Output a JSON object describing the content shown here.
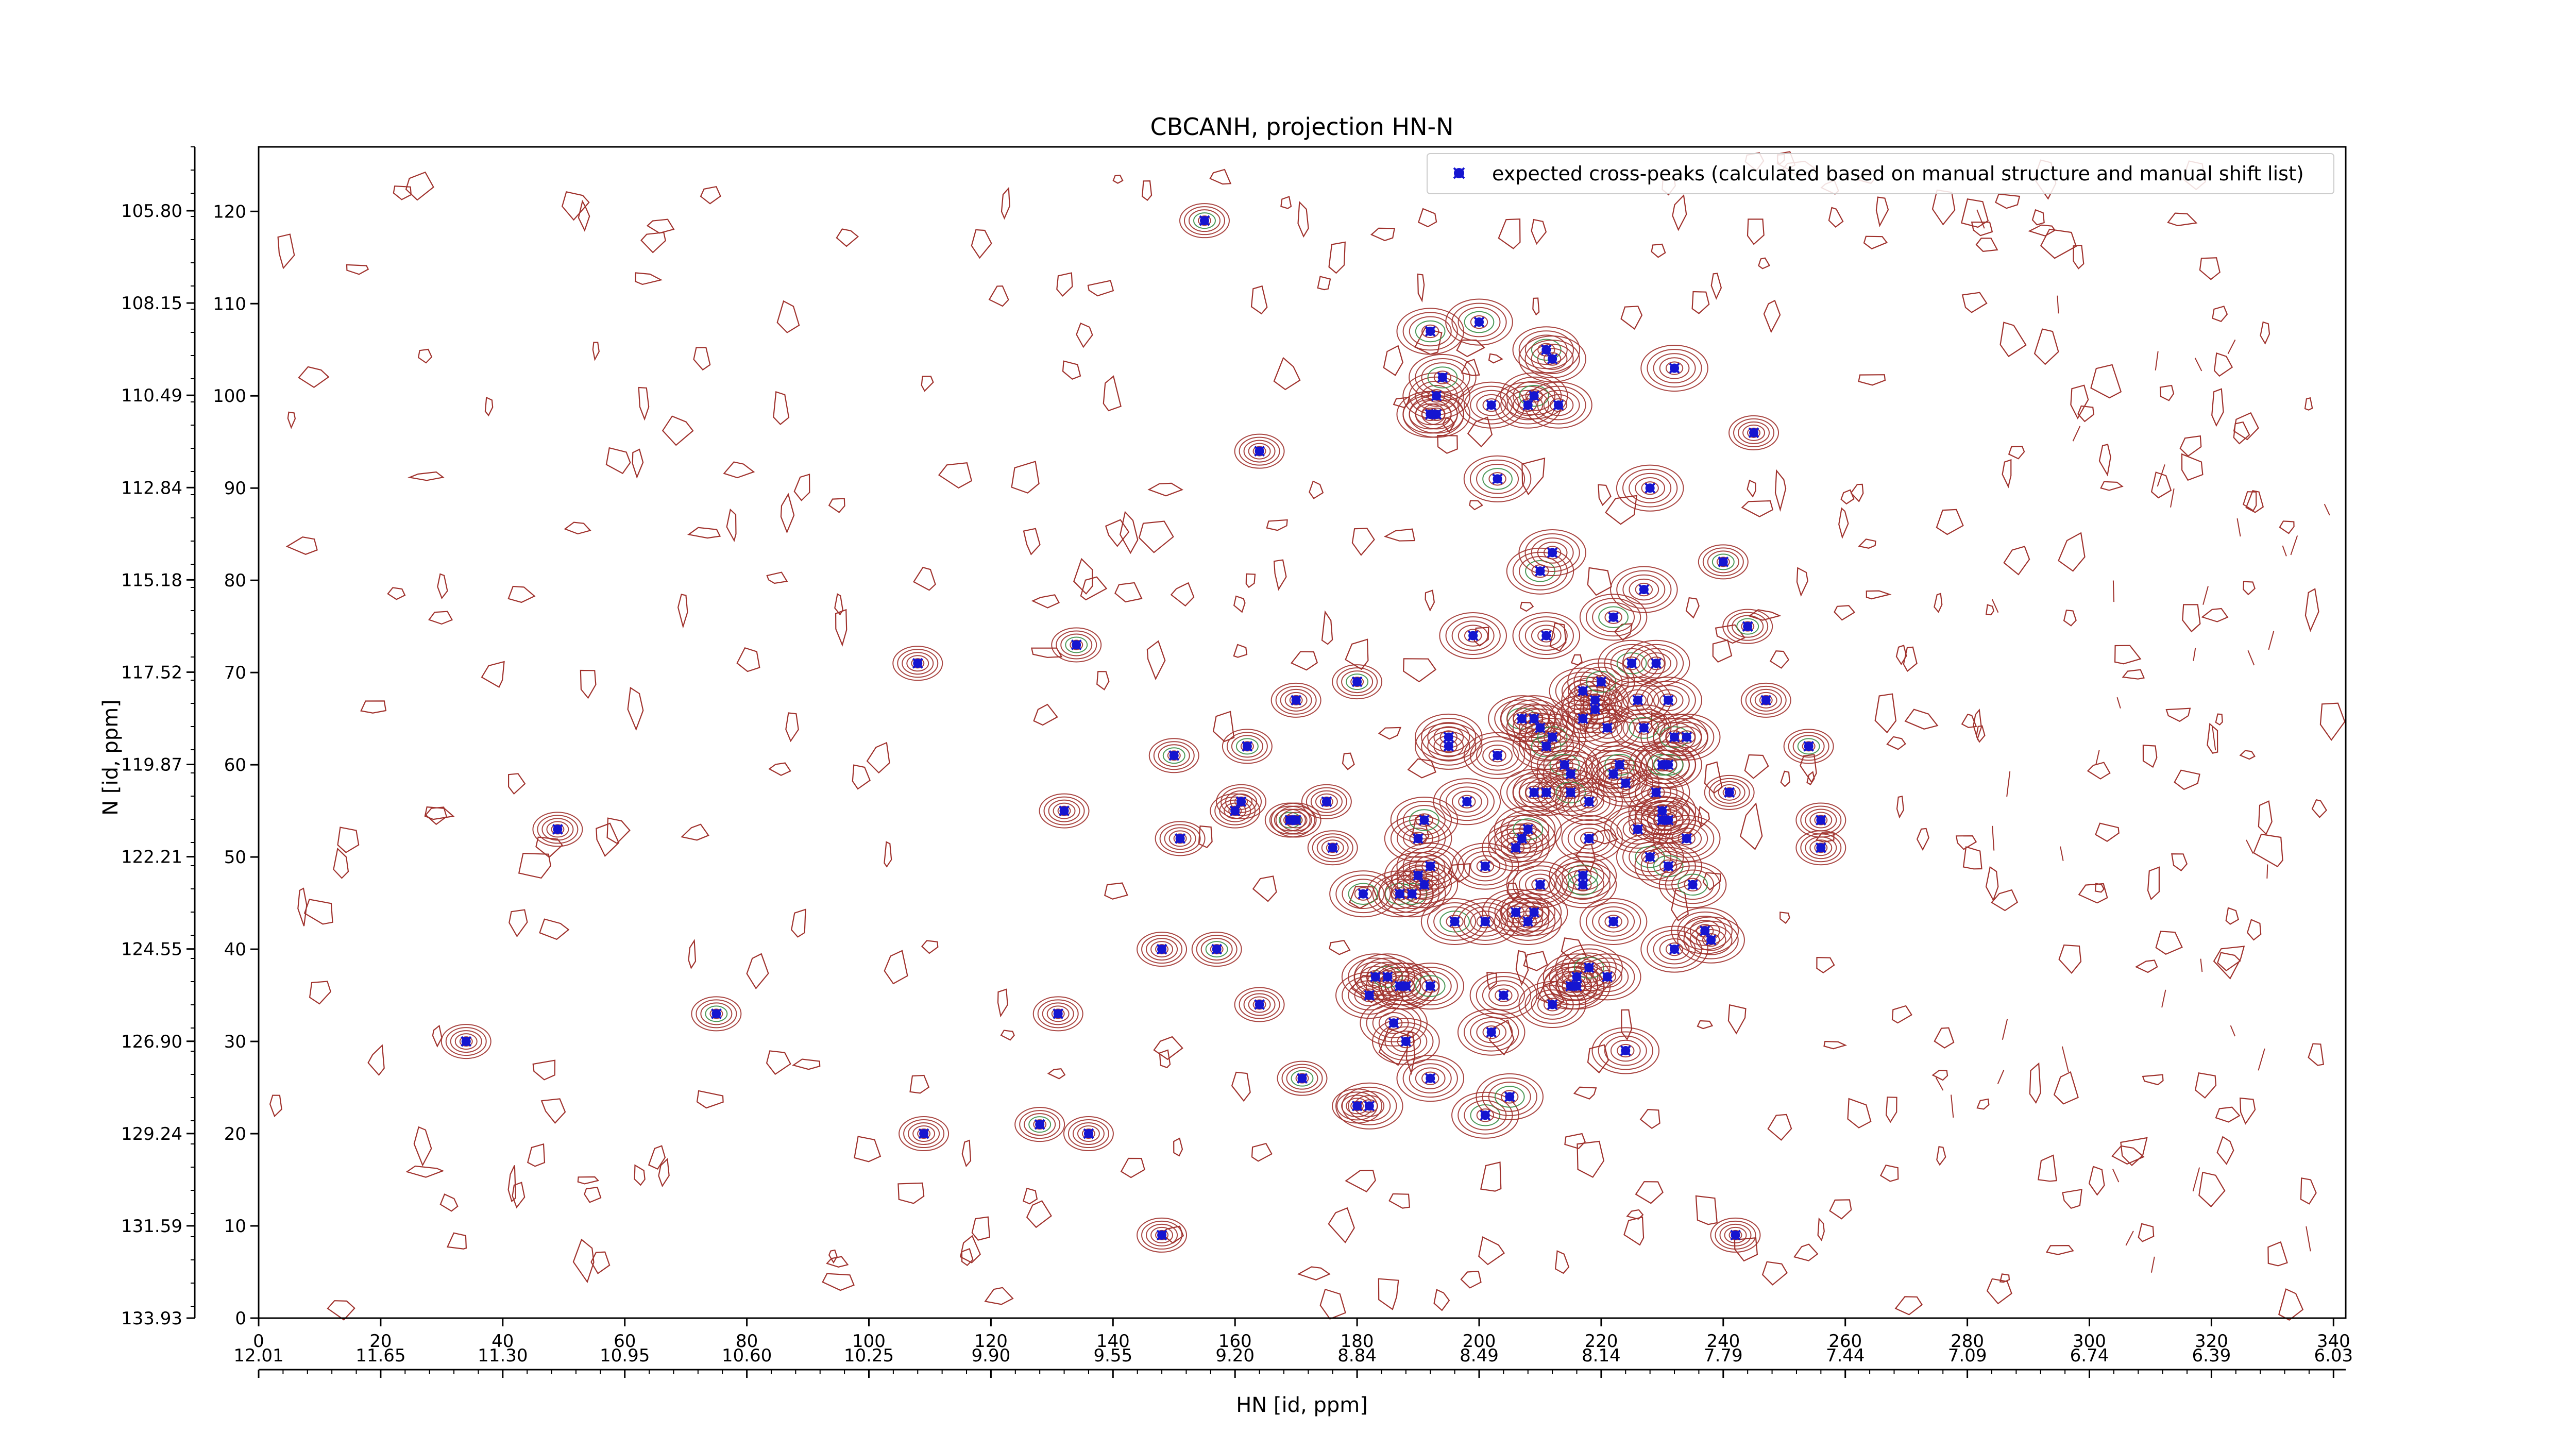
{
  "chart_data": {
    "type": "scatter",
    "title": "CBCANH, projection HN-N",
    "xlabel": "HN [id, ppm]",
    "ylabel": "N [id, ppm]",
    "x_index_range": [
      0,
      342
    ],
    "y_index_range": [
      0,
      127
    ],
    "x_index_ticks": [
      "0",
      "20",
      "40",
      "60",
      "80",
      "100",
      "120",
      "140",
      "160",
      "180",
      "200",
      "220",
      "240",
      "260",
      "280",
      "300",
      "320",
      "340"
    ],
    "x_ppm_ticks": [
      "12.01",
      "11.65",
      "11.30",
      "10.95",
      "10.60",
      "10.25",
      "9.90",
      "9.55",
      "9.20",
      "8.84",
      "8.49",
      "8.14",
      "7.79",
      "7.44",
      "7.09",
      "6.74",
      "6.39",
      "6.03"
    ],
    "y_index_ticks": [
      "0",
      "10",
      "20",
      "30",
      "40",
      "50",
      "60",
      "70",
      "80",
      "90",
      "100",
      "110",
      "120"
    ],
    "y_ppm_ticks": [
      "133.93",
      "131.59",
      "129.24",
      "126.90",
      "124.55",
      "122.21",
      "119.87",
      "117.52",
      "115.18",
      "112.84",
      "110.49",
      "108.15",
      "105.80"
    ],
    "legend": {
      "position": "top-right",
      "entries": [
        "expected cross-peaks (calculated based on manual structure and manual shift list)"
      ]
    },
    "colors": {
      "contour_positive": "#a0322d",
      "contour_negative": "#3a8d45",
      "marker": "#1515d0"
    },
    "series": [
      {
        "name": "expected cross-peaks (calculated based on manual structure and manual shift list)",
        "points": [
          [
            155,
            119
          ],
          [
            34,
            30
          ],
          [
            49,
            53
          ],
          [
            75,
            33
          ],
          [
            108,
            71
          ],
          [
            109,
            20
          ],
          [
            128,
            21
          ],
          [
            131,
            33
          ],
          [
            132,
            55
          ],
          [
            134,
            73
          ],
          [
            136,
            20
          ],
          [
            148,
            40
          ],
          [
            150,
            61
          ],
          [
            151,
            52
          ],
          [
            148,
            9
          ],
          [
            157,
            40
          ],
          [
            160,
            55
          ],
          [
            161,
            56
          ],
          [
            162,
            62
          ],
          [
            164,
            94
          ],
          [
            164,
            34
          ],
          [
            169,
            54
          ],
          [
            170,
            54
          ],
          [
            170,
            67
          ],
          [
            171,
            26
          ],
          [
            175,
            56
          ],
          [
            176,
            51
          ],
          [
            180,
            69
          ],
          [
            180,
            23
          ],
          [
            182,
            23
          ],
          [
            181,
            46
          ],
          [
            182,
            35
          ],
          [
            183,
            37
          ],
          [
            185,
            37
          ],
          [
            186,
            32
          ],
          [
            187,
            36
          ],
          [
            187,
            46
          ],
          [
            188,
            36
          ],
          [
            188,
            30
          ],
          [
            189,
            46
          ],
          [
            190,
            48
          ],
          [
            190,
            52
          ],
          [
            191,
            54
          ],
          [
            191,
            47
          ],
          [
            192,
            49
          ],
          [
            192,
            36
          ],
          [
            192,
            26
          ],
          [
            192,
            98
          ],
          [
            192,
            107
          ],
          [
            193,
            98
          ],
          [
            193,
            100
          ],
          [
            194,
            102
          ],
          [
            195,
            63
          ],
          [
            195,
            62
          ],
          [
            196,
            43
          ],
          [
            198,
            56
          ],
          [
            199,
            74
          ],
          [
            200,
            108
          ],
          [
            201,
            49
          ],
          [
            201,
            43
          ],
          [
            201,
            22
          ],
          [
            202,
            99
          ],
          [
            202,
            31
          ],
          [
            203,
            91
          ],
          [
            203,
            61
          ],
          [
            204,
            35
          ],
          [
            205,
            24
          ],
          [
            206,
            44
          ],
          [
            206,
            51
          ],
          [
            207,
            65
          ],
          [
            207,
            52
          ],
          [
            208,
            43
          ],
          [
            208,
            53
          ],
          [
            208,
            99
          ],
          [
            209,
            44
          ],
          [
            209,
            100
          ],
          [
            209,
            65
          ],
          [
            209,
            57
          ],
          [
            210,
            81
          ],
          [
            210,
            64
          ],
          [
            210,
            47
          ],
          [
            211,
            62
          ],
          [
            211,
            57
          ],
          [
            211,
            74
          ],
          [
            211,
            105
          ],
          [
            212,
            104
          ],
          [
            212,
            83
          ],
          [
            212,
            63
          ],
          [
            212,
            34
          ],
          [
            213,
            99
          ],
          [
            214,
            60
          ],
          [
            215,
            59
          ],
          [
            215,
            36
          ],
          [
            215,
            57
          ],
          [
            216,
            37
          ],
          [
            216,
            36
          ],
          [
            217,
            48
          ],
          [
            217,
            65
          ],
          [
            217,
            68
          ],
          [
            217,
            47
          ],
          [
            218,
            56
          ],
          [
            218,
            52
          ],
          [
            218,
            38
          ],
          [
            219,
            66
          ],
          [
            219,
            67
          ],
          [
            220,
            69
          ],
          [
            221,
            64
          ],
          [
            221,
            37
          ],
          [
            222,
            76
          ],
          [
            222,
            59
          ],
          [
            222,
            43
          ],
          [
            223,
            60
          ],
          [
            224,
            58
          ],
          [
            224,
            29
          ],
          [
            225,
            71
          ],
          [
            226,
            53
          ],
          [
            226,
            67
          ],
          [
            227,
            64
          ],
          [
            227,
            79
          ],
          [
            228,
            90
          ],
          [
            228,
            50
          ],
          [
            229,
            57
          ],
          [
            229,
            71
          ],
          [
            230,
            60
          ],
          [
            230,
            54
          ],
          [
            230,
            55
          ],
          [
            231,
            60
          ],
          [
            231,
            54
          ],
          [
            231,
            67
          ],
          [
            231,
            49
          ],
          [
            232,
            103
          ],
          [
            232,
            40
          ],
          [
            232,
            63
          ],
          [
            234,
            63
          ],
          [
            234,
            52
          ],
          [
            235,
            47
          ],
          [
            237,
            42
          ],
          [
            238,
            41
          ],
          [
            240,
            82
          ],
          [
            241,
            57
          ],
          [
            242,
            9
          ],
          [
            244,
            75
          ],
          [
            245,
            96
          ],
          [
            247,
            67
          ],
          [
            254,
            62
          ],
          [
            256,
            54
          ],
          [
            256,
            51
          ]
        ]
      }
    ]
  }
}
